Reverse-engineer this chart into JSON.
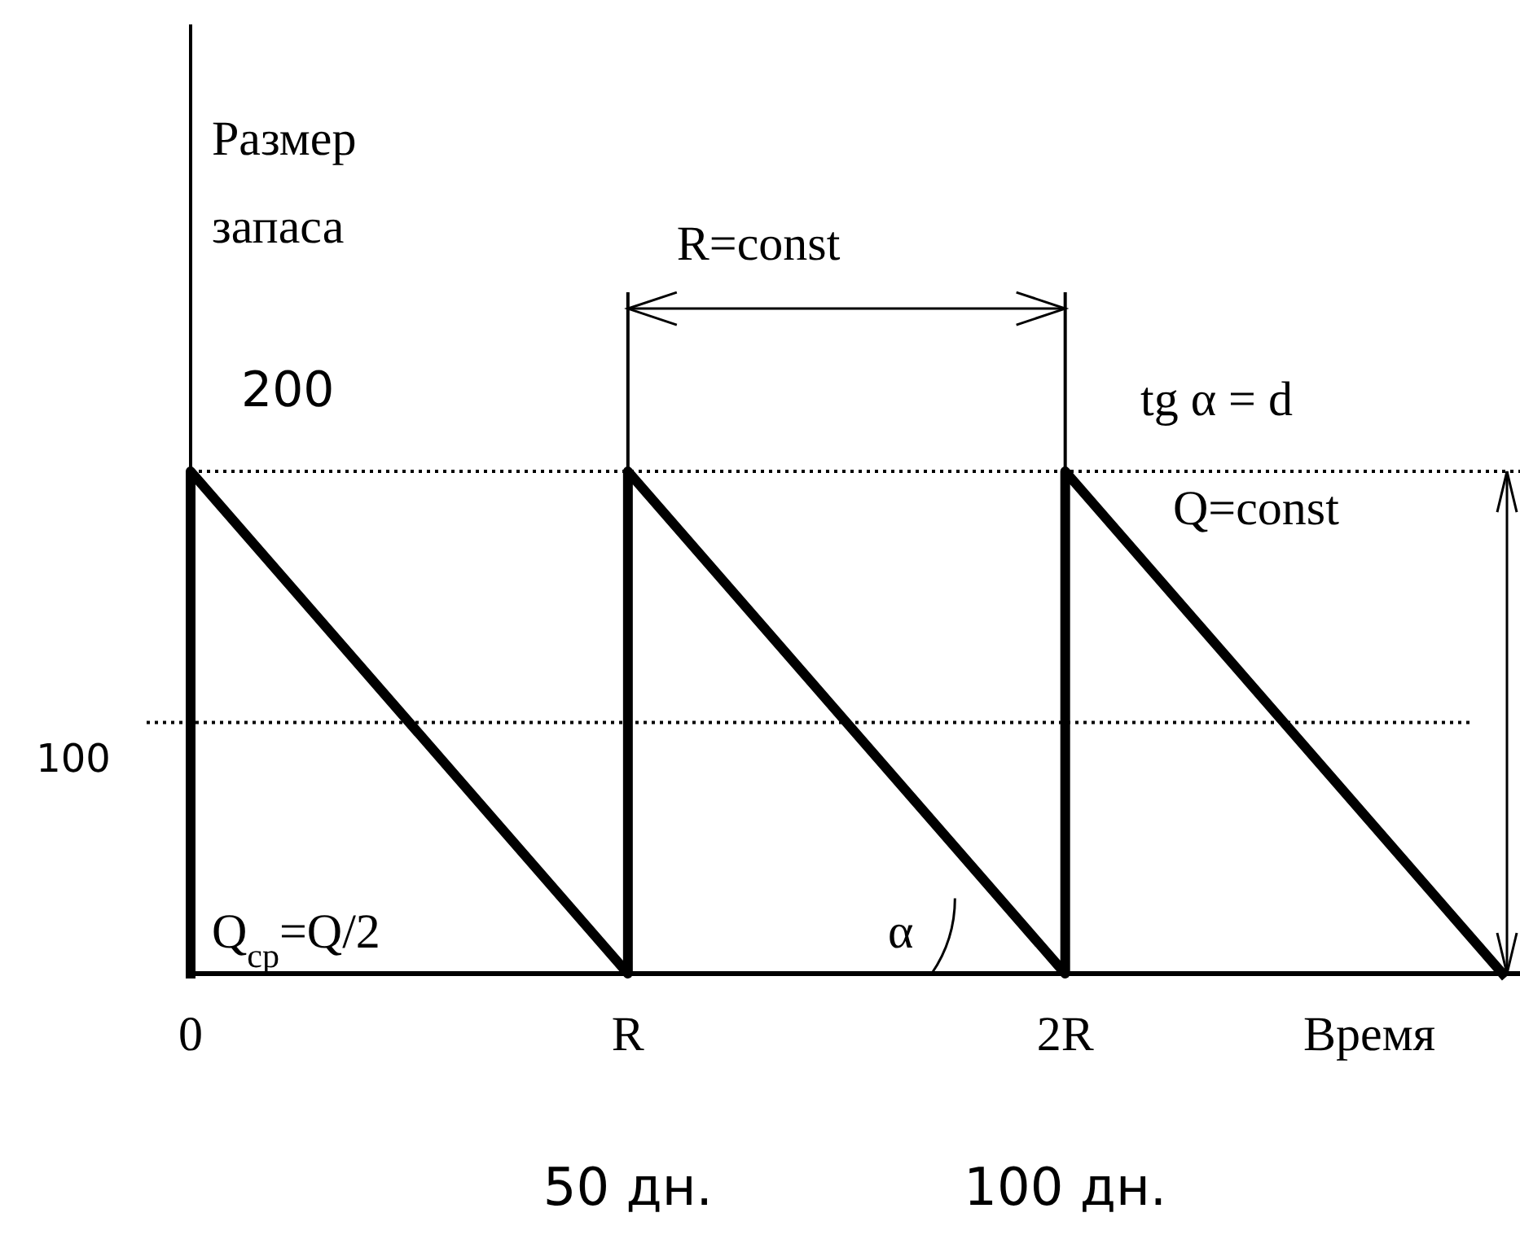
{
  "chart_data": {
    "type": "line",
    "ylabel": "Размер\nзапаса",
    "xlabel": "Время",
    "x": [
      0,
      0,
      50,
      50,
      100,
      100,
      150
    ],
    "series": [
      {
        "color": "#000000",
        "values": [
          0,
          200,
          0,
          200,
          0,
          200,
          0
        ]
      }
    ],
    "xlim": [
      0,
      152
    ],
    "ylim": [
      0,
      378
    ],
    "xticks": [
      {
        "value": 50,
        "label": "50 дн."
      },
      {
        "value": 100,
        "label": "100 дн."
      }
    ],
    "ref_lines": [
      {
        "axis": "y",
        "value": 200,
        "label": "200",
        "line_style": "dotted"
      },
      {
        "axis": "y",
        "value": 100,
        "label": "100",
        "line_style": "dotted"
      }
    ],
    "annotations": [
      {
        "text": "0",
        "x": 0,
        "y": 0
      },
      {
        "text": "R",
        "x": 50,
        "y": 0
      },
      {
        "text": "2R",
        "x": 100,
        "y": 0
      },
      {
        "text": "R=const",
        "x": 50,
        "y": 200
      },
      "tg α = d",
      "Q=const",
      "Q$_{ср}$=Q/2",
      "α"
    ],
    "marker": "none",
    "line_style": "solid"
  }
}
